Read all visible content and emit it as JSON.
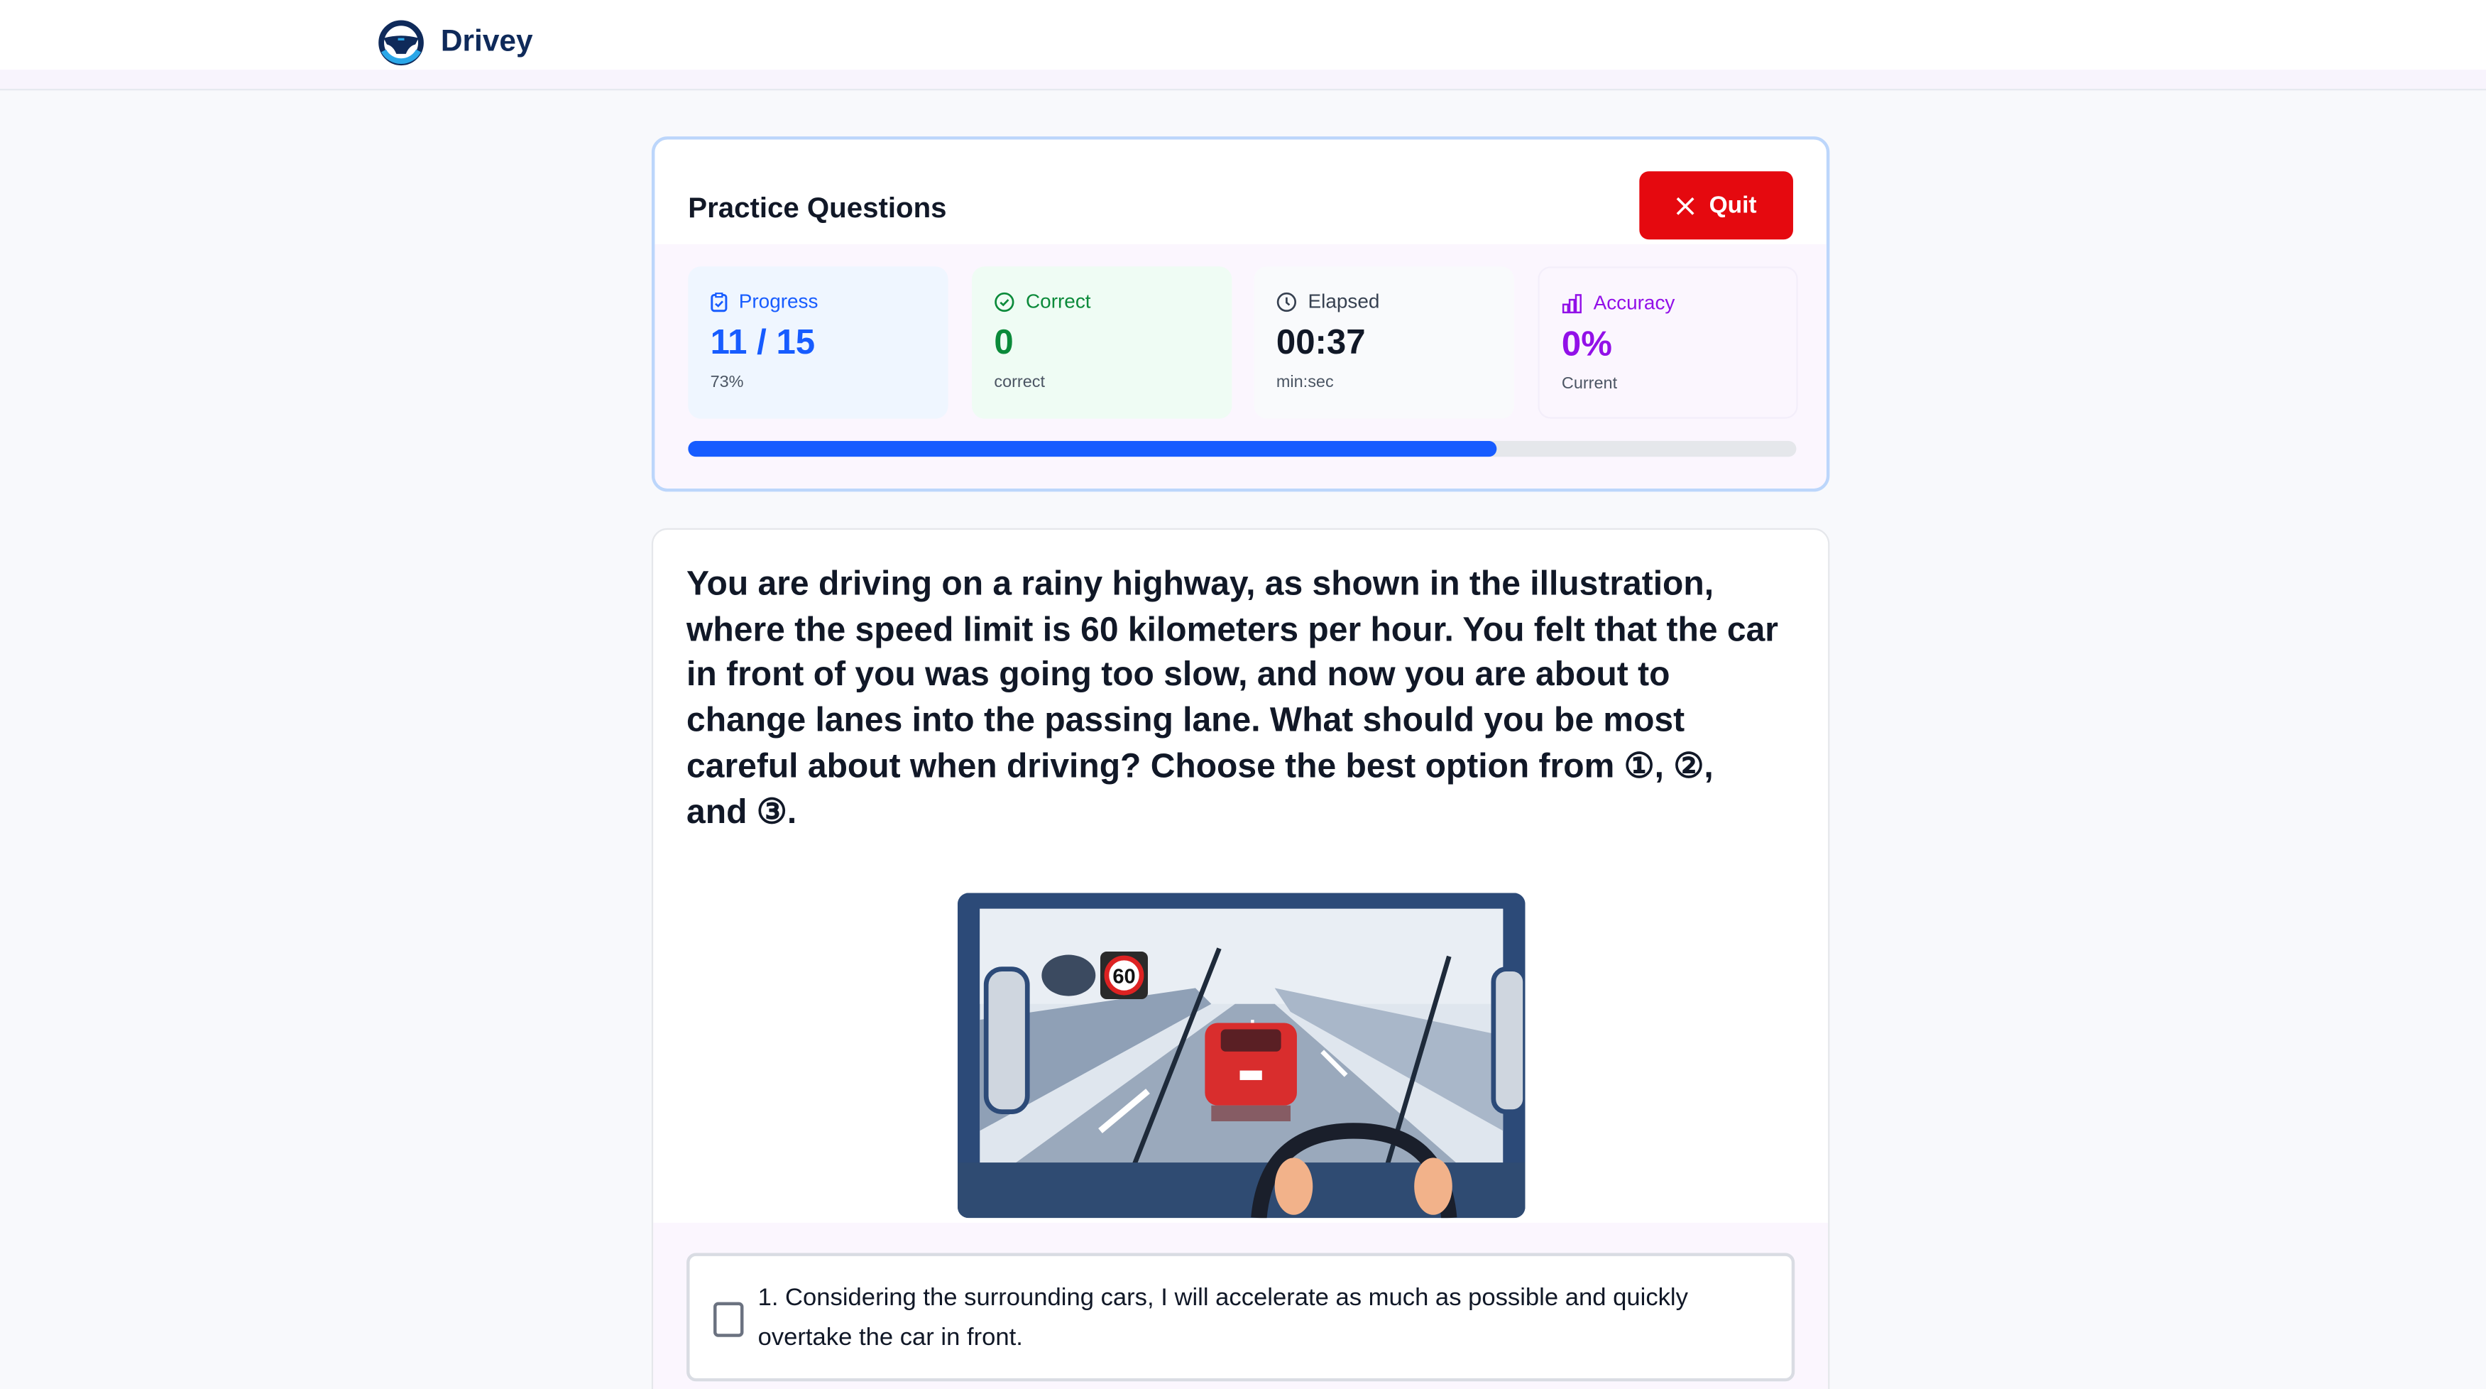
{
  "app": {
    "name": "Drivey"
  },
  "practice": {
    "title": "Practice Questions",
    "quit_label": "Quit"
  },
  "stats": [
    {
      "icon": "clipboard-check-icon",
      "label": "Progress",
      "value": "11 / 15",
      "sub": "73%",
      "color": "#175cff"
    },
    {
      "icon": "check-circle-icon",
      "label": "Correct",
      "value": "0",
      "sub": "correct",
      "color": "#0b8a3a"
    },
    {
      "icon": "clock-icon",
      "label": "Elapsed",
      "value": "00:37",
      "sub": "min:sec",
      "color": "#111827"
    },
    {
      "icon": "bar-chart-icon",
      "label": "Accuracy",
      "value": "0%",
      "sub": "Current",
      "color": "#9210e8"
    }
  ],
  "progress_fraction": 0.73,
  "question": {
    "text": "You are driving on a rainy highway, as shown in the illustration, where the speed limit is 60 kilometers per hour. You felt that the car in front of you was going too slow, and now you are about to change lanes into the passing lane. What should you be most careful about when driving? Choose the best option from ①, ②, and ③.",
    "sign": "60",
    "options": [
      {
        "label": "1. Considering the surrounding cars, I will accelerate as much as possible and quickly overtake the car in front.",
        "checked": false
      }
    ]
  }
}
